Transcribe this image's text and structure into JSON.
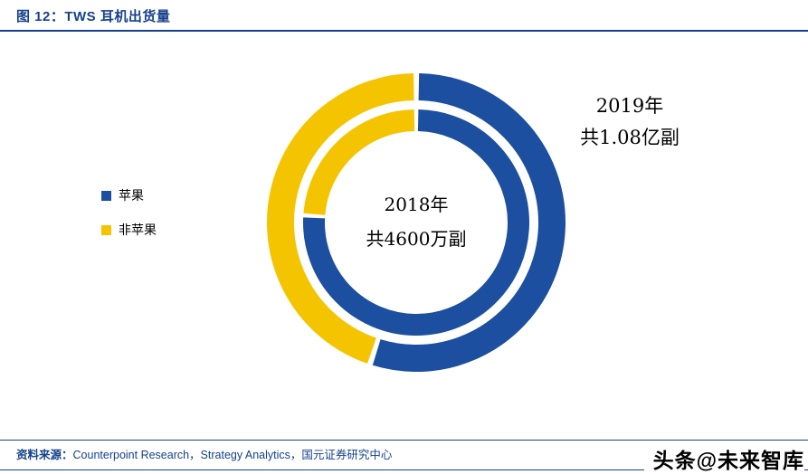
{
  "figure_label": "图 12：TWS 耳机出货量",
  "colors": {
    "navy": "#16418C",
    "apple_blue": "#1C4FA0",
    "non_apple_yellow": "#F4C400",
    "text": "#000000",
    "background": "#FFFFFF"
  },
  "legend": {
    "items": [
      {
        "label": "苹果",
        "color": "#1C4FA0"
      },
      {
        "label": "非苹果",
        "color": "#F4C400"
      }
    ]
  },
  "chart_data": {
    "type": "pie",
    "variant": "concentric-double-donut",
    "order": "clockwise-from-top",
    "colors": {
      "苹果": "#1C4FA0",
      "非苹果": "#F4C400"
    },
    "rings": [
      {
        "name": "2018",
        "position": "inner",
        "label_lines": [
          "2018年",
          "共4600万副"
        ],
        "total": "4600万副",
        "series": [
          {
            "name": "苹果",
            "share": 0.76
          },
          {
            "name": "非苹果",
            "share": 0.24
          }
        ]
      },
      {
        "name": "2019",
        "position": "outer",
        "label_lines": [
          "2019年",
          "共1.08亿副"
        ],
        "total": "1.08亿副",
        "series": [
          {
            "name": "苹果",
            "share": 0.55
          },
          {
            "name": "非苹果",
            "share": 0.45
          }
        ]
      }
    ]
  },
  "source": {
    "label": "资料来源：",
    "text": "Counterpoint Research，Strategy Analytics，国元证券研究中心"
  },
  "watermark": "头条@未来智库"
}
